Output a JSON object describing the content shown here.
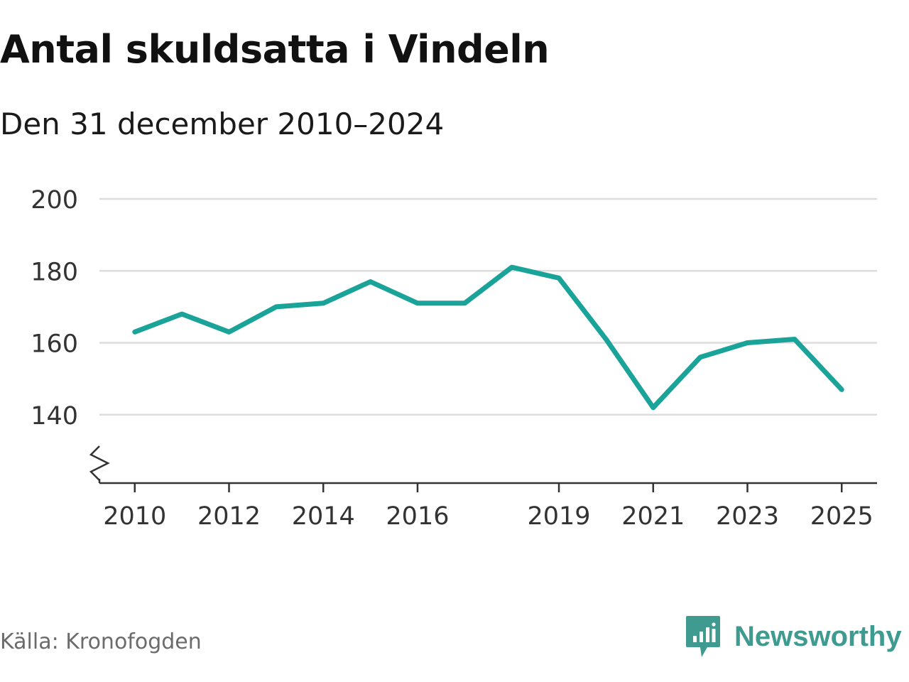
{
  "title": "Antal skuldsatta i Vindeln",
  "subtitle": "Den 31 december 2010–2024",
  "source": "Källa: Kronofogden",
  "brand": {
    "name": "Newsworthy",
    "icon": "newsworthy-logo-icon",
    "color": "#3f9b8f"
  },
  "colors": {
    "line": "#1aa398",
    "grid": "#dddddd",
    "axis": "#333333",
    "text": "#333333"
  },
  "chart_data": {
    "type": "line",
    "title": "Antal skuldsatta i Vindeln",
    "subtitle": "Den 31 december 2010–2024",
    "xlabel": "",
    "ylabel": "",
    "x": [
      2010,
      2011,
      2012,
      2013,
      2014,
      2015,
      2016,
      2017,
      2018,
      2019,
      2020,
      2021,
      2022,
      2023,
      2024,
      2025
    ],
    "values": [
      163,
      168,
      163,
      170,
      171,
      177,
      171,
      171,
      181,
      178,
      161,
      142,
      156,
      160,
      161,
      147
    ],
    "xticks": [
      "2010",
      "2012",
      "2014",
      "2016",
      "2019",
      "2021",
      "2023",
      "2025"
    ],
    "yticks": [
      "140",
      "160",
      "180",
      "200"
    ],
    "ylim": [
      121,
      200
    ],
    "xlim": [
      2009.25,
      2025.75
    ],
    "axis_break": true,
    "grid": true,
    "series": [
      {
        "name": "Antal skuldsatta",
        "values": [
          163,
          168,
          163,
          170,
          171,
          177,
          171,
          171,
          181,
          178,
          161,
          142,
          156,
          160,
          161,
          147
        ]
      }
    ]
  }
}
